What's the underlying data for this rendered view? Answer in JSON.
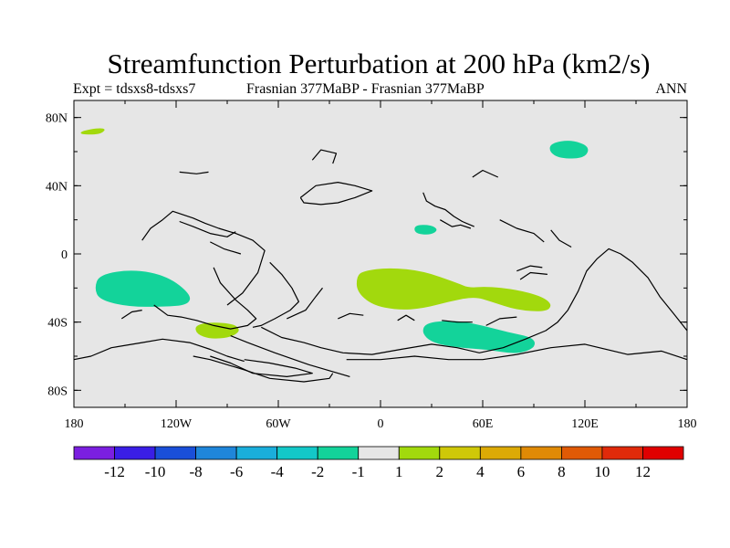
{
  "chart_data": {
    "type": "heatmap",
    "title": "Streamfunction Perturbation at 200 hPa (km2/s)",
    "subtitle_left": "Expt = tdsxs8-tdsxs7",
    "subtitle_center": "Frasnian 377MaBP - Frasnian 377MaBP",
    "subtitle_right": "ANN",
    "x_ticks": [
      {
        "value": -180,
        "label": "180"
      },
      {
        "value": -120,
        "label": "120W"
      },
      {
        "value": -60,
        "label": "60W"
      },
      {
        "value": 0,
        "label": "0"
      },
      {
        "value": 60,
        "label": "60E"
      },
      {
        "value": 120,
        "label": "120E"
      },
      {
        "value": 180,
        "label": "180"
      }
    ],
    "y_ticks": [
      {
        "value": 80,
        "label": "80N"
      },
      {
        "value": 40,
        "label": "40N"
      },
      {
        "value": 0,
        "label": "0"
      },
      {
        "value": -40,
        "label": "40S"
      },
      {
        "value": -80,
        "label": "80S"
      }
    ],
    "xlim": [
      -180,
      180
    ],
    "ylim": [
      -90,
      90
    ],
    "colorbar": {
      "levels": [
        "-12",
        "-10",
        "-8",
        "-6",
        "-4",
        "-2",
        "-1",
        "1",
        "2",
        "4",
        "6",
        "8",
        "10",
        "12"
      ],
      "colors": [
        "#7b1fe0",
        "#3a1ee6",
        "#1a4fd9",
        "#1f86da",
        "#1aaedb",
        "#13c8c8",
        "#13d39a",
        "#e6e6e6",
        "#a2d90d",
        "#cfc808",
        "#dcaa05",
        "#e08a05",
        "#e05a05",
        "#e02a0a",
        "#e00000"
      ]
    },
    "regions": [
      {
        "name": "positive-east-pacific-tropics",
        "category": "2",
        "color": "#a2d90d",
        "points": [
          [
            -10,
            -10
          ],
          [
            5,
            -8
          ],
          [
            25,
            -10
          ],
          [
            45,
            -17
          ],
          [
            52,
            -20
          ],
          [
            62,
            -19
          ],
          [
            80,
            -21
          ],
          [
            95,
            -25
          ],
          [
            101,
            -30
          ],
          [
            97,
            -34
          ],
          [
            80,
            -33
          ],
          [
            65,
            -28
          ],
          [
            55,
            -25
          ],
          [
            40,
            -28
          ],
          [
            25,
            -32
          ],
          [
            10,
            -33
          ],
          [
            -5,
            -30
          ],
          [
            -14,
            -22
          ],
          [
            -14,
            -13
          ]
        ]
      },
      {
        "name": "positive-southern-patch",
        "category": "2",
        "color": "#a2d90d",
        "points": [
          [
            -109,
            -42
          ],
          [
            -100,
            -40
          ],
          [
            -86,
            -41
          ],
          [
            -82,
            -45
          ],
          [
            -88,
            -49
          ],
          [
            -100,
            -50
          ],
          [
            -108,
            -47
          ]
        ]
      },
      {
        "name": "positive-arctic-patch",
        "category": "2",
        "color": "#a2d90d",
        "points": [
          [
            -176,
            72
          ],
          [
            -165,
            74
          ],
          [
            -161,
            73
          ],
          [
            -165,
            70
          ],
          [
            -176,
            70
          ]
        ]
      },
      {
        "name": "negative-west-subtropics",
        "category": "-1",
        "color": "#13d39a",
        "points": [
          [
            -165,
            -12
          ],
          [
            -145,
            -9
          ],
          [
            -125,
            -13
          ],
          [
            -111,
            -24
          ],
          [
            -113,
            -30
          ],
          [
            -127,
            -31
          ],
          [
            -148,
            -31
          ],
          [
            -165,
            -27
          ],
          [
            -168,
            -20
          ]
        ]
      },
      {
        "name": "negative-north-east",
        "category": "-1",
        "color": "#13d39a",
        "points": [
          [
            100,
            65
          ],
          [
            112,
            67
          ],
          [
            123,
            63
          ],
          [
            120,
            56
          ],
          [
            105,
            56
          ],
          [
            99,
            60
          ]
        ]
      },
      {
        "name": "negative-tropical-small",
        "category": "-1",
        "color": "#13d39a",
        "points": [
          [
            20,
            17
          ],
          [
            30,
            17
          ],
          [
            34,
            14
          ],
          [
            29,
            11
          ],
          [
            20,
            12
          ]
        ]
      },
      {
        "name": "negative-southern-ocean",
        "category": "-1",
        "color": "#13d39a",
        "points": [
          [
            27,
            -40
          ],
          [
            45,
            -39
          ],
          [
            60,
            -42
          ],
          [
            75,
            -46
          ],
          [
            90,
            -49
          ],
          [
            91,
            -55
          ],
          [
            80,
            -59
          ],
          [
            62,
            -56
          ],
          [
            45,
            -55
          ],
          [
            30,
            -52
          ],
          [
            24,
            -46
          ]
        ]
      }
    ],
    "coastlines": [
      [
        [
          -90,
          -30
        ],
        [
          -81,
          -23
        ],
        [
          -72,
          -11
        ],
        [
          -68,
          2
        ],
        [
          -75,
          8
        ],
        [
          -85,
          12
        ],
        [
          -95,
          15
        ],
        [
          -103,
          18
        ],
        [
          -110,
          21
        ],
        [
          -122,
          25
        ],
        [
          -128,
          20
        ],
        [
          -135,
          15
        ],
        [
          -140,
          8
        ]
      ],
      [
        [
          -98,
          -8
        ],
        [
          -94,
          -17
        ],
        [
          -85,
          -27
        ],
        [
          -78,
          -33
        ],
        [
          -73,
          -38
        ],
        [
          -78,
          -42
        ],
        [
          -88,
          -44
        ],
        [
          -98,
          -42
        ],
        [
          -108,
          -39
        ],
        [
          -117,
          -37
        ],
        [
          -125,
          -36
        ],
        [
          -133,
          -30
        ]
      ],
      [
        [
          -65,
          -5
        ],
        [
          -58,
          -12
        ],
        [
          -52,
          -20
        ],
        [
          -48,
          -28
        ],
        [
          -53,
          -33
        ],
        [
          -62,
          -38
        ],
        [
          -70,
          -42
        ],
        [
          -75,
          -43
        ]
      ],
      [
        [
          -55,
          -38
        ],
        [
          -44,
          -33
        ],
        [
          -38,
          -25
        ],
        [
          -34,
          -20
        ]
      ],
      [
        [
          -88,
          -48
        ],
        [
          -78,
          -52
        ],
        [
          -62,
          -58
        ],
        [
          -42,
          -65
        ],
        [
          -18,
          -72
        ]
      ],
      [
        [
          -180,
          -62
        ],
        [
          -170,
          -60
        ],
        [
          -158,
          -55
        ],
        [
          -140,
          -52
        ],
        [
          -128,
          -50
        ],
        [
          -112,
          -52
        ],
        [
          -100,
          -56
        ],
        [
          -90,
          -60
        ],
        [
          -80,
          -63
        ]
      ],
      [
        [
          -110,
          -60
        ],
        [
          -100,
          -62
        ],
        [
          -80,
          -68
        ],
        [
          -65,
          -73
        ],
        [
          -45,
          -75
        ],
        [
          -30,
          -73
        ],
        [
          -28,
          -70
        ]
      ],
      [
        [
          -100,
          -60
        ],
        [
          -88,
          -64
        ],
        [
          -75,
          -70
        ],
        [
          -55,
          -72
        ],
        [
          -40,
          -70
        ],
        [
          -50,
          -67
        ],
        [
          -65,
          -64
        ],
        [
          -80,
          -62
        ]
      ],
      [
        [
          -70,
          -43
        ],
        [
          -58,
          -49
        ],
        [
          -45,
          -52
        ],
        [
          -35,
          -55
        ],
        [
          -22,
          -58
        ],
        [
          -5,
          -59
        ],
        [
          12,
          -56
        ],
        [
          30,
          -53
        ],
        [
          45,
          -55
        ],
        [
          58,
          -58
        ],
        [
          72,
          -55
        ],
        [
          85,
          -50
        ],
        [
          97,
          -45
        ],
        [
          104,
          -40
        ],
        [
          110,
          -33
        ],
        [
          116,
          -22
        ],
        [
          121,
          -10
        ],
        [
          127,
          -3
        ],
        [
          134,
          3
        ],
        [
          141,
          0
        ],
        [
          148,
          -5
        ],
        [
          157,
          -14
        ],
        [
          164,
          -25
        ],
        [
          172,
          -35
        ],
        [
          180,
          -45
        ]
      ],
      [
        [
          180,
          -62
        ],
        [
          165,
          -57
        ],
        [
          145,
          -59
        ],
        [
          120,
          -53
        ],
        [
          100,
          -55
        ],
        [
          80,
          -59
        ],
        [
          60,
          -62
        ],
        [
          40,
          -62
        ],
        [
          20,
          -60
        ],
        [
          0,
          -62
        ],
        [
          -20,
          -62
        ]
      ],
      [
        [
          -47,
          33
        ],
        [
          -38,
          40
        ],
        [
          -25,
          42
        ],
        [
          -15,
          40
        ],
        [
          -5,
          37
        ],
        [
          -15,
          33
        ],
        [
          -25,
          30
        ],
        [
          -35,
          29
        ],
        [
          -45,
          30
        ],
        [
          -47,
          33
        ]
      ],
      [
        [
          -40,
          55
        ],
        [
          -35,
          61
        ],
        [
          -26,
          59
        ],
        [
          -28,
          53
        ]
      ],
      [
        [
          -118,
          48
        ],
        [
          -108,
          47
        ],
        [
          -101,
          48
        ]
      ],
      [
        [
          -118,
          19
        ],
        [
          -110,
          16
        ],
        [
          -100,
          12
        ],
        [
          -90,
          10
        ],
        [
          -85,
          13
        ]
      ],
      [
        [
          -100,
          7
        ],
        [
          -92,
          3
        ],
        [
          -82,
          0
        ]
      ],
      [
        [
          -152,
          -38
        ],
        [
          -146,
          -34
        ],
        [
          -140,
          -33
        ]
      ],
      [
        [
          -25,
          -38
        ],
        [
          -18,
          -35
        ],
        [
          -10,
          -36
        ]
      ],
      [
        [
          10,
          -39
        ],
        [
          15,
          -36
        ],
        [
          20,
          -39
        ]
      ],
      [
        [
          25,
          36
        ],
        [
          27,
          31
        ],
        [
          32,
          28
        ],
        [
          38,
          26
        ],
        [
          43,
          22
        ],
        [
          48,
          19
        ],
        [
          55,
          16
        ]
      ],
      [
        [
          35,
          20
        ],
        [
          42,
          16
        ],
        [
          47,
          17
        ],
        [
          53,
          15
        ]
      ],
      [
        [
          70,
          20
        ],
        [
          80,
          15
        ],
        [
          90,
          12
        ],
        [
          96,
          7
        ]
      ],
      [
        [
          100,
          14
        ],
        [
          105,
          8
        ],
        [
          112,
          4
        ]
      ],
      [
        [
          80,
          -10
        ],
        [
          88,
          -7
        ],
        [
          95,
          -8
        ]
      ],
      [
        [
          82,
          -15
        ],
        [
          88,
          -11
        ],
        [
          98,
          -12
        ]
      ],
      [
        [
          54,
          45
        ],
        [
          60,
          49
        ],
        [
          69,
          45
        ]
      ],
      [
        [
          36,
          -39
        ],
        [
          45,
          -40
        ],
        [
          54,
          -40
        ]
      ],
      [
        [
          62,
          -42
        ],
        [
          70,
          -38
        ],
        [
          80,
          -37
        ]
      ]
    ]
  }
}
